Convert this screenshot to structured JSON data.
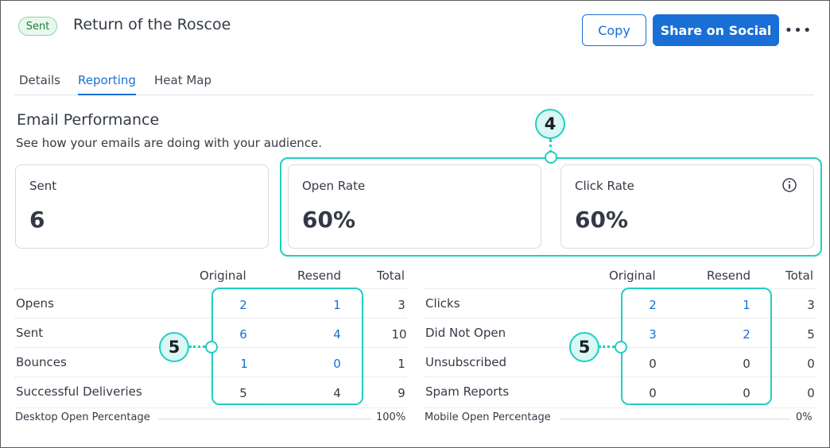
{
  "header": {
    "status_badge": "Sent",
    "title": "Return of the Roscoe",
    "copy_label": "Copy",
    "share_label": "Share on Social",
    "more_icon": "more-horizontal-icon"
  },
  "tabs": [
    {
      "label": "Details",
      "active": false
    },
    {
      "label": "Reporting",
      "active": true
    },
    {
      "label": "Heat Map",
      "active": false
    }
  ],
  "section": {
    "title": "Email Performance",
    "subtitle": "See how your emails are doing with your audience."
  },
  "cards": [
    {
      "label": "Sent",
      "value": "6"
    },
    {
      "label": "Open Rate",
      "value": "60%"
    },
    {
      "label": "Click Rate",
      "value": "60%",
      "icon": "info-icon"
    }
  ],
  "callouts": {
    "top": "4",
    "left_table": "5",
    "right_table": "5"
  },
  "left_table": {
    "headers": [
      "Original",
      "Resend",
      "Total"
    ],
    "rows": [
      {
        "label": "Opens",
        "original": "2",
        "resend": "1",
        "total": "3",
        "linked": true
      },
      {
        "label": "Sent",
        "original": "6",
        "resend": "4",
        "total": "10",
        "linked": true
      },
      {
        "label": "Bounces",
        "original": "1",
        "resend": "0",
        "total": "1",
        "linked": true
      },
      {
        "label": "Successful Deliveries",
        "original": "5",
        "resend": "4",
        "total": "9",
        "linked": false
      }
    ],
    "footer": {
      "label": "Desktop Open Percentage",
      "value": "100%"
    }
  },
  "right_table": {
    "headers": [
      "Original",
      "Resend",
      "Total"
    ],
    "rows": [
      {
        "label": "Clicks",
        "original": "2",
        "resend": "1",
        "total": "3",
        "linked": true
      },
      {
        "label": "Did Not Open",
        "original": "3",
        "resend": "2",
        "total": "5",
        "linked": true
      },
      {
        "label": "Unsubscribed",
        "original": "0",
        "resend": "0",
        "total": "0",
        "linked": false
      },
      {
        "label": "Spam Reports",
        "original": "0",
        "resend": "0",
        "total": "0",
        "linked": false
      }
    ],
    "footer": {
      "label": "Mobile Open Percentage",
      "value": "0%"
    }
  },
  "colors": {
    "accent": "#1a6fd6",
    "callout": "#1fcfc0",
    "badge_green": "#1e7a3d"
  }
}
